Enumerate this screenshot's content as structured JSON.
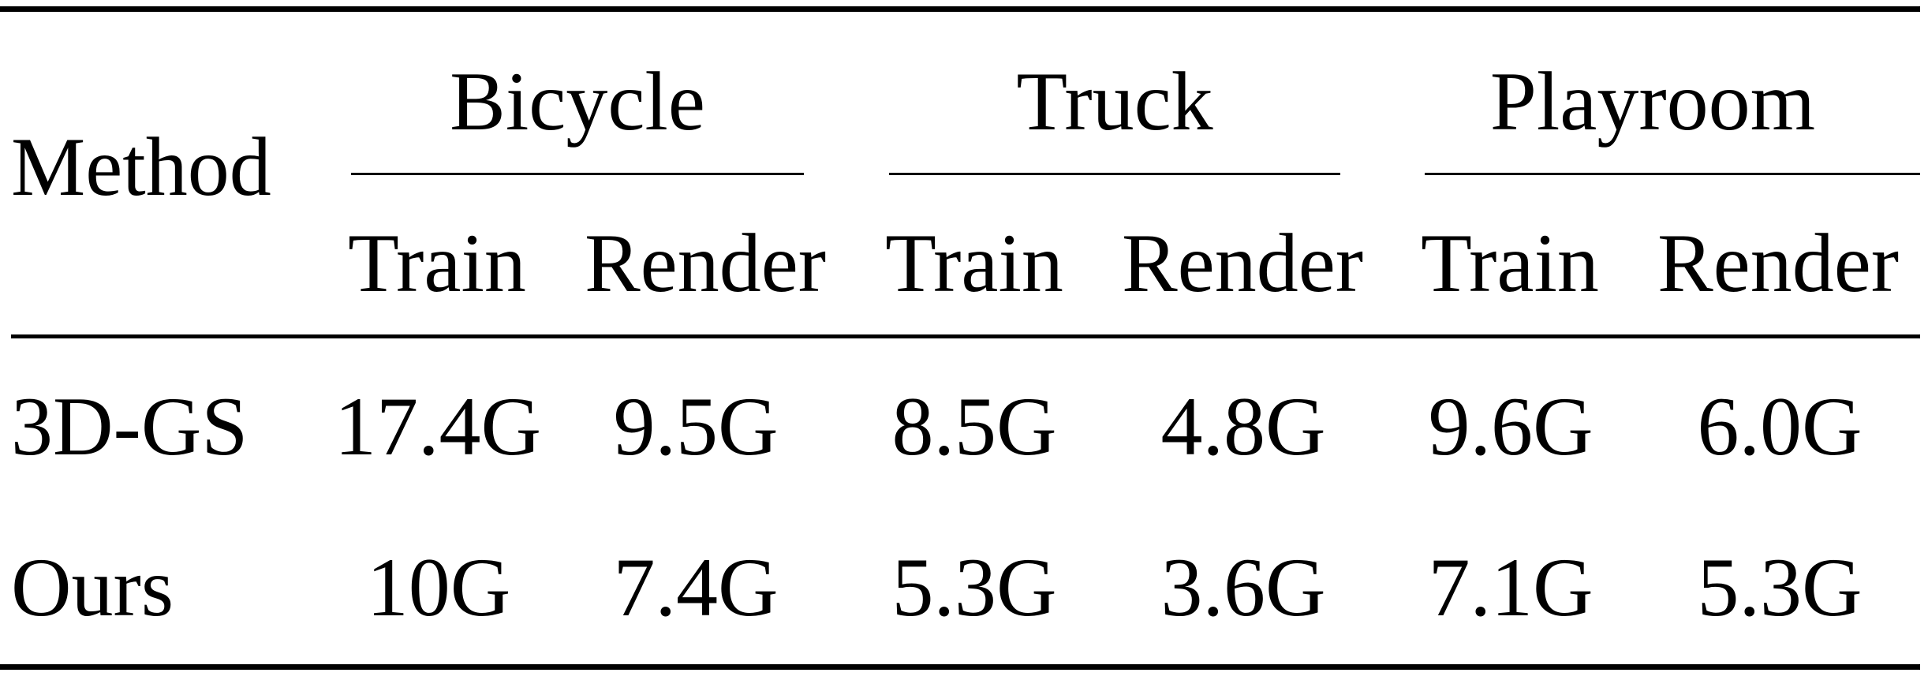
{
  "table": {
    "method_header": "Method",
    "groups": [
      "Bicycle",
      "Truck",
      "Playroom"
    ],
    "subheaders": [
      "Train",
      "Render",
      "Train",
      "Render",
      "Train",
      "Render"
    ],
    "rows": [
      {
        "method": "3D-GS",
        "values": [
          "17.4G",
          "9.5G",
          "8.5G",
          "4.8G",
          "9.6G",
          "6.0G"
        ]
      },
      {
        "method": "Ours",
        "values": [
          "10G",
          "7.4G",
          "5.3G",
          "3.6G",
          "7.1G",
          "5.3G"
        ]
      }
    ]
  }
}
